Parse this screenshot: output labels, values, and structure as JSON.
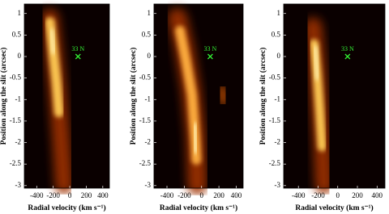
{
  "chart_data": [
    {
      "type": "image",
      "x_label": "Radial velocity (km s⁻¹)",
      "y_label": "Position along the slit (arcsec)",
      "xlim": [
        -550,
        480
      ],
      "ylim": [
        -3.06,
        1.22
      ],
      "xticks": [
        -400,
        -200,
        0,
        200,
        400
      ],
      "yticks": [
        1,
        0.5,
        0,
        -0.5,
        -1,
        -1.5,
        -2,
        -2.5,
        -3
      ],
      "marker": {
        "label": "33 N",
        "x": 100,
        "y": 0
      }
    },
    {
      "type": "image",
      "x_label": "Radial velocity (km s⁻¹)",
      "y_label": "Position along the slit (arcsec)",
      "xlim": [
        -550,
        480
      ],
      "ylim": [
        -3.06,
        1.22
      ],
      "xticks": [
        -400,
        -200,
        0,
        200,
        400
      ],
      "yticks": [
        1,
        0.5,
        0,
        -0.5,
        -1,
        -1.5,
        -2,
        -2.5,
        -3
      ],
      "marker": {
        "label": "33 N",
        "x": 100,
        "y": 0
      }
    },
    {
      "type": "image",
      "x_label": "Radial velocity (km s⁻¹)",
      "y_label": "Position along the slit (arcsec)",
      "xlim": [
        -550,
        480
      ],
      "ylim": [
        -3.06,
        1.22
      ],
      "xticks": [
        -400,
        -200,
        0,
        200,
        400
      ],
      "yticks": [
        1,
        0.5,
        0,
        -0.5,
        -1,
        -1.5,
        -2,
        -2.5,
        -3
      ],
      "marker": {
        "label": "33 N",
        "x": 100,
        "y": 0
      }
    }
  ]
}
